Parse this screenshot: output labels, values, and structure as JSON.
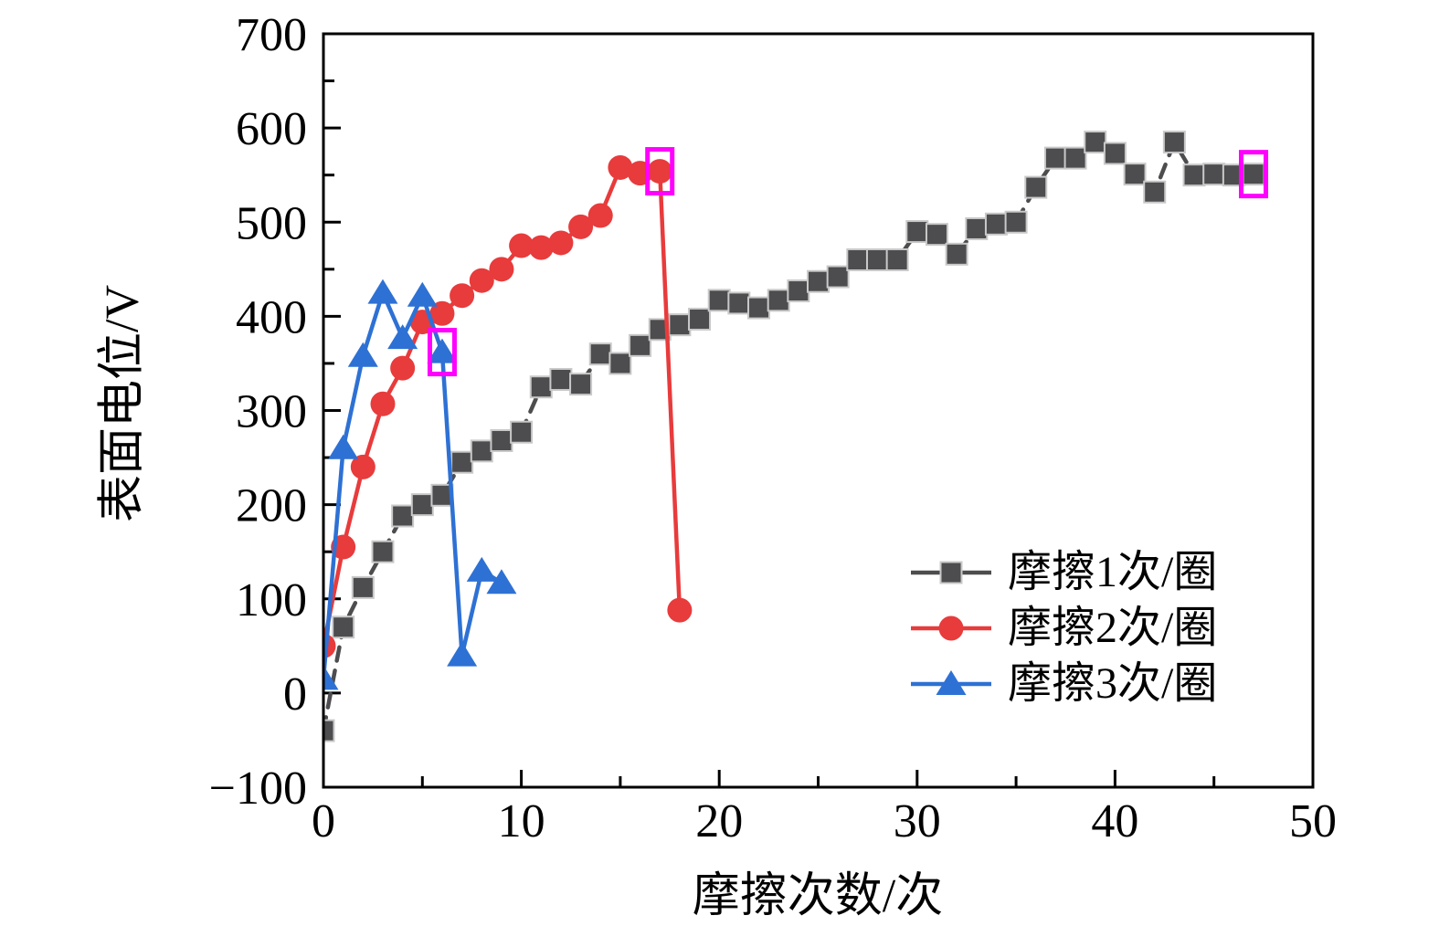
{
  "chart_data": {
    "type": "line",
    "title": "",
    "xlabel": "摩擦次数/次",
    "ylabel": "表面电位/V",
    "xlim": [
      0,
      50
    ],
    "ylim": [
      -100,
      700
    ],
    "x_major_ticks": [
      0,
      10,
      20,
      30,
      40,
      50
    ],
    "x_minor_ticks": [
      5,
      15,
      25,
      35,
      45
    ],
    "y_major_ticks": [
      -100,
      0,
      100,
      200,
      300,
      400,
      500,
      600,
      700
    ],
    "y_minor_ticks": [
      -50,
      50,
      150,
      250,
      350,
      450,
      550,
      650
    ],
    "grid": false,
    "legend_position": "inside lower right",
    "series": [
      {
        "name": "摩擦1次/圈",
        "marker": "square",
        "color": "#4d4d4f",
        "marker_edge": "#c9c9c9",
        "line_style": "dashed",
        "x": [
          0,
          1,
          2,
          3,
          4,
          5,
          6,
          7,
          8,
          9,
          10,
          11,
          12,
          13,
          14,
          15,
          16,
          17,
          18,
          19,
          20,
          21,
          22,
          23,
          24,
          25,
          26,
          27,
          28,
          29,
          30,
          31,
          32,
          33,
          34,
          35,
          36,
          37,
          38,
          39,
          40,
          41,
          42,
          43,
          44,
          45,
          46,
          47
        ],
        "y": [
          -40,
          70,
          112,
          150,
          188,
          200,
          210,
          245,
          257,
          268,
          277,
          325,
          333,
          328,
          360,
          350,
          369,
          386,
          391,
          397,
          417,
          414,
          409,
          417,
          427,
          437,
          442,
          460,
          460,
          460,
          490,
          487,
          466,
          493,
          498,
          500,
          537,
          568,
          568,
          585,
          573,
          551,
          532,
          585,
          550,
          551,
          550,
          551
        ]
      },
      {
        "name": "摩擦2次/圈",
        "marker": "circle",
        "color": "#e83b3c",
        "marker_edge": "none",
        "line_style": "solid",
        "x": [
          0,
          1,
          2,
          3,
          4,
          5,
          6,
          7,
          8,
          9,
          10,
          11,
          12,
          13,
          14,
          15,
          16,
          17,
          18
        ],
        "y": [
          50,
          155,
          240,
          307,
          345,
          394,
          403,
          422,
          438,
          450,
          475,
          473,
          478,
          495,
          507,
          558,
          552,
          554,
          88
        ]
      },
      {
        "name": "摩擦3次/圈",
        "marker": "triangle",
        "color": "#2e71d4",
        "marker_edge": "none",
        "line_style": "solid",
        "x": [
          0,
          1,
          2,
          3,
          4,
          5,
          6,
          7,
          8,
          9
        ],
        "y": [
          15,
          260,
          358,
          425,
          377,
          422,
          362,
          40,
          130,
          117
        ]
      }
    ],
    "highlight_boxes": {
      "color": "#ff00ff",
      "items": [
        {
          "series": "摩擦3次/圈",
          "x": 6,
          "y": 362
        },
        {
          "series": "摩擦2次/圈",
          "x": 17,
          "y": 554
        },
        {
          "series": "摩擦1次/圈",
          "x": 47,
          "y": 551
        }
      ]
    }
  }
}
